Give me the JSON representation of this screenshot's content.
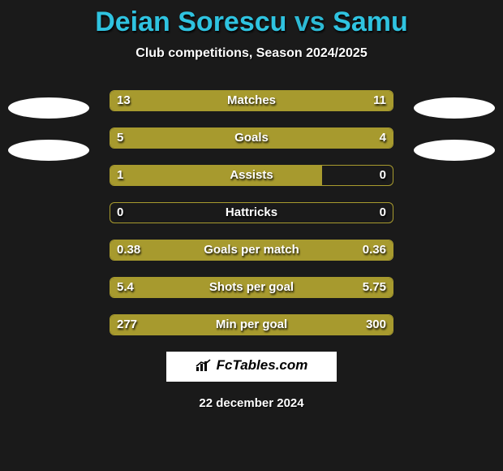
{
  "title": {
    "player1": "Deian Sorescu",
    "vs": "vs",
    "player2": "Samu"
  },
  "subtitle": "Club competitions, Season 2024/2025",
  "watermark": "FcTables.com",
  "date": "22 december 2024",
  "colors": {
    "bar": "#a79a2e",
    "title": "#2fc3e0",
    "background": "#1a1a1a"
  },
  "rows": [
    {
      "label": "Matches",
      "left_val": "13",
      "right_val": "11",
      "left_pct": 54,
      "right_pct": 46,
      "split": true
    },
    {
      "label": "Goals",
      "left_val": "5",
      "right_val": "4",
      "left_pct": 56,
      "right_pct": 44,
      "split": true
    },
    {
      "label": "Assists",
      "left_val": "1",
      "right_val": "0",
      "left_pct": 75,
      "right_pct": 0,
      "split": false
    },
    {
      "label": "Hattricks",
      "left_val": "0",
      "right_val": "0",
      "left_pct": 0,
      "right_pct": 0,
      "split": false
    },
    {
      "label": "Goals per match",
      "left_val": "0.38",
      "right_val": "0.36",
      "left_pct": 51,
      "right_pct": 49,
      "split": true
    },
    {
      "label": "Shots per goal",
      "left_val": "5.4",
      "right_val": "5.75",
      "left_pct": 48,
      "right_pct": 52,
      "split": true
    },
    {
      "label": "Min per goal",
      "left_val": "277",
      "right_val": "300",
      "left_pct": 48,
      "right_pct": 52,
      "split": true
    }
  ]
}
